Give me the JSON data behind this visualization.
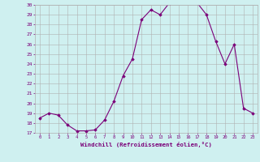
{
  "x": [
    0,
    1,
    2,
    3,
    4,
    5,
    6,
    7,
    8,
    9,
    10,
    11,
    12,
    13,
    14,
    15,
    16,
    17,
    18,
    19,
    20,
    21,
    22,
    23
  ],
  "y": [
    18.5,
    19.0,
    18.8,
    17.8,
    17.2,
    17.2,
    17.3,
    18.3,
    20.2,
    22.8,
    24.5,
    28.5,
    29.5,
    29.0,
    30.2,
    30.3,
    30.3,
    30.2,
    29.0,
    26.3,
    24.0,
    26.0,
    19.5,
    19.0
  ],
  "line_color": "#7b0079",
  "marker": "D",
  "marker_size": 1.8,
  "bg_color": "#cff0f0",
  "grid_color": "#b0b0b0",
  "xlabel": "Windchill (Refroidissement éolien,°C)",
  "xlabel_color": "#7b0079",
  "tick_color": "#7b0079",
  "ylim": [
    17,
    30
  ],
  "xlim": [
    -0.5,
    23.5
  ],
  "yticks": [
    17,
    18,
    19,
    20,
    21,
    22,
    23,
    24,
    25,
    26,
    27,
    28,
    29,
    30
  ],
  "xticks": [
    0,
    1,
    2,
    3,
    4,
    5,
    6,
    7,
    8,
    9,
    10,
    11,
    12,
    13,
    14,
    15,
    16,
    17,
    18,
    19,
    20,
    21,
    22,
    23
  ]
}
